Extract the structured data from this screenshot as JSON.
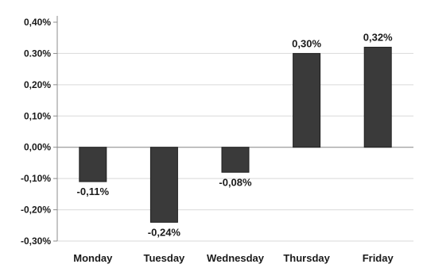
{
  "chart_data": {
    "type": "bar",
    "categories": [
      "Monday",
      "Tuesday",
      "Wednesday",
      "Thursday",
      "Friday"
    ],
    "values": [
      -0.11,
      -0.24,
      -0.08,
      0.3,
      0.32
    ],
    "data_labels": [
      "-0,11%",
      "-0,24%",
      "-0,08%",
      "0,30%",
      "0,32%"
    ],
    "ylim": [
      -0.3,
      0.4
    ],
    "yticks": [
      0.4,
      0.3,
      0.2,
      0.1,
      0.0,
      -0.1,
      -0.2,
      -0.3
    ],
    "ytick_labels": [
      "0,40%",
      "0.30%",
      "0,20%",
      "0,10%",
      "0,00%",
      "-0,10%",
      "-0,20%",
      "-0,30%"
    ],
    "grid": true,
    "legend": "none",
    "title": "",
    "xlabel": "",
    "ylabel": "",
    "colors": {
      "bar": "#3a3a3a",
      "bar_edge": "#1e1e1e",
      "grid": "#d9d9d9",
      "axis": "#8c8c8c",
      "text": "#1a1a1a"
    }
  }
}
